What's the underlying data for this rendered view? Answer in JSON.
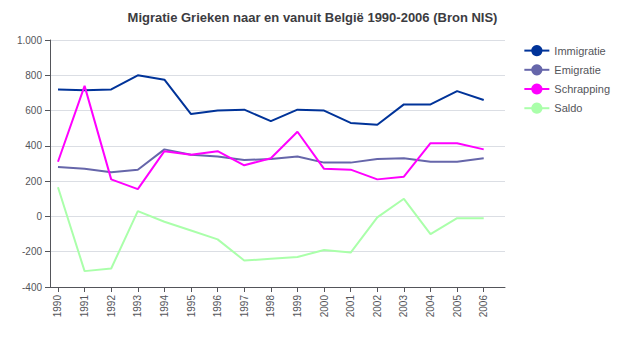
{
  "chart_data": {
    "type": "line",
    "title": "Migratie Grieken naar en vanuit België 1990-2006 (Bron NIS)",
    "x": [
      1990,
      1991,
      1992,
      1993,
      1994,
      1995,
      1996,
      1997,
      1998,
      1999,
      2000,
      2001,
      2002,
      2003,
      2004,
      2005,
      2006
    ],
    "series": [
      {
        "name": "Immigratie",
        "color": "#003399",
        "values": [
          720,
          715,
          720,
          800,
          775,
          580,
          600,
          605,
          540,
          605,
          600,
          530,
          520,
          635,
          635,
          710,
          660
        ]
      },
      {
        "name": "Emigratie",
        "color": "#6666AA",
        "values": [
          280,
          270,
          250,
          265,
          380,
          350,
          340,
          320,
          325,
          340,
          305,
          305,
          325,
          330,
          310,
          310,
          330
        ]
      },
      {
        "name": "Schrapping",
        "color": "#FF00FF",
        "values": [
          310,
          740,
          210,
          155,
          370,
          350,
          370,
          290,
          330,
          480,
          270,
          265,
          210,
          225,
          415,
          415,
          380
        ]
      },
      {
        "name": "Saldo",
        "color": "#AAFFAA",
        "values": [
          165,
          -310,
          -295,
          30,
          -30,
          -80,
          -130,
          -250,
          -240,
          -230,
          -190,
          -205,
          -5,
          100,
          -100,
          -10,
          -10
        ]
      }
    ],
    "xlim": [
      1989.7,
      2006.8
    ],
    "xticks": [
      1990,
      1991,
      1992,
      1993,
      1994,
      1995,
      1996,
      1997,
      1998,
      1999,
      2000,
      2001,
      2002,
      2003,
      2004,
      2005,
      2006
    ],
    "ylim": [
      -400,
      1000
    ],
    "yticks": [
      -400,
      -200,
      0,
      200,
      400,
      600,
      800,
      {
        "value": 1000,
        "label": "1.000"
      }
    ],
    "grid": "y",
    "legend": "right"
  }
}
